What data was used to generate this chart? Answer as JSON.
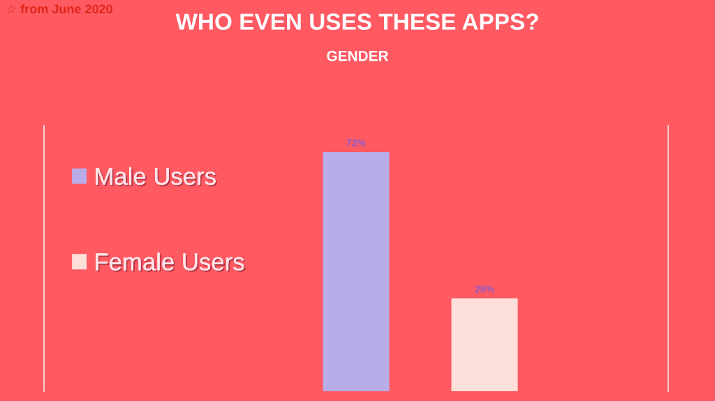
{
  "chart_data": {
    "type": "bar",
    "title": "WHO EVEN USES THESE APPS?",
    "subtitle": "GENDER",
    "annotations": [
      "☆ from June 2020"
    ],
    "categories": [
      null,
      null
    ],
    "stacked": true,
    "series": [
      {
        "name": "Male Users",
        "color": "#b8ade8",
        "values": [
          72,
          null
        ],
        "value_labels": [
          "72%",
          null
        ]
      },
      {
        "name": "Female Users",
        "color": "#fee0da",
        "values": [
          null,
          28
        ],
        "value_labels": [
          null,
          "28%"
        ]
      }
    ],
    "legend": "left",
    "grid": false
  }
}
